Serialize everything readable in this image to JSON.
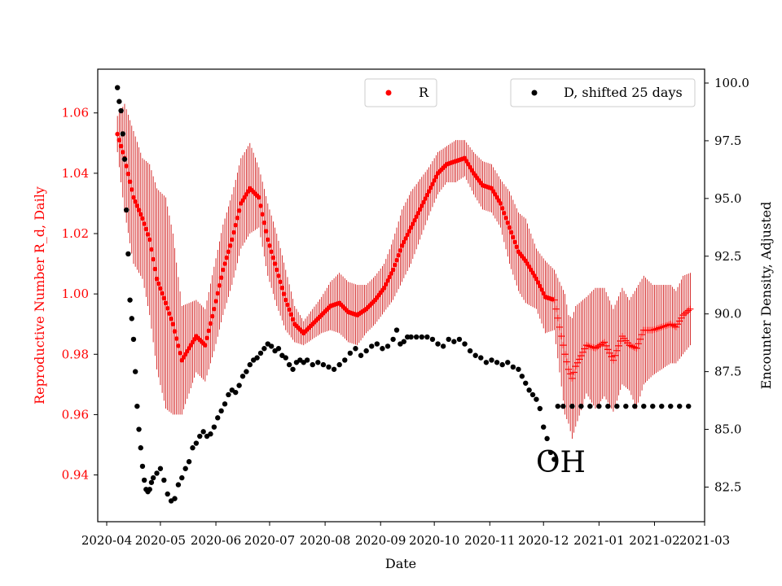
{
  "chart_data": {
    "type": "scatter",
    "title": "",
    "annotation": "OH",
    "xlabel": "Date",
    "ylabel_left": "Reproductive Number R_d, Daily",
    "ylabel_right": "Encounter Density, Adjusted",
    "x_ticks": [
      "2020-04",
      "2020-05",
      "2020-06",
      "2020-07",
      "2020-08",
      "2020-09",
      "2020-10",
      "2020-11",
      "2020-12",
      "2021-01",
      "2021-02",
      "2021-03"
    ],
    "y_left_ticks": [
      "0.94",
      "0.96",
      "0.98",
      "1.00",
      "1.02",
      "1.04",
      "1.06"
    ],
    "y_right_ticks": [
      "82.5",
      "85.0",
      "87.5",
      "90.0",
      "92.5",
      "95.0",
      "97.5",
      "100.0"
    ],
    "x_range_days": [
      -5,
      334
    ],
    "y_left_range": [
      0.9245,
      1.0745
    ],
    "y_right_range": [
      81.0,
      100.6
    ],
    "legend": {
      "r_label": "R",
      "d_label": "D, shifted 25 days"
    },
    "colors": {
      "r_series": "#ff0000",
      "r_errorbar": "#cc0000",
      "d_series": "#000000",
      "left_axis_text": "#ff0000"
    },
    "series": [
      {
        "name": "R",
        "axis": "left",
        "points": [
          [
            6,
            1.053,
            0.006
          ],
          [
            10,
            1.045,
            0.018
          ],
          [
            15,
            1.032,
            0.022
          ],
          [
            20,
            1.025,
            0.02
          ],
          [
            24,
            1.018,
            0.025
          ],
          [
            28,
            1.005,
            0.03
          ],
          [
            33,
            0.997,
            0.035
          ],
          [
            37,
            0.99,
            0.03
          ],
          [
            42,
            0.978,
            0.018
          ],
          [
            46,
            0.982,
            0.015
          ],
          [
            50,
            0.986,
            0.012
          ],
          [
            55,
            0.983,
            0.012
          ],
          [
            60,
            0.995,
            0.014
          ],
          [
            65,
            1.008,
            0.015
          ],
          [
            70,
            1.018,
            0.015
          ],
          [
            75,
            1.03,
            0.015
          ],
          [
            80,
            1.035,
            0.015
          ],
          [
            85,
            1.032,
            0.01
          ],
          [
            90,
            1.018,
            0.012
          ],
          [
            95,
            1.008,
            0.012
          ],
          [
            100,
            0.998,
            0.01
          ],
          [
            105,
            0.99,
            0.006
          ],
          [
            110,
            0.987,
            0.004
          ],
          [
            115,
            0.99,
            0.005
          ],
          [
            120,
            0.993,
            0.006
          ],
          [
            125,
            0.996,
            0.008
          ],
          [
            130,
            0.997,
            0.01
          ],
          [
            135,
            0.994,
            0.01
          ],
          [
            140,
            0.993,
            0.01
          ],
          [
            145,
            0.995,
            0.008
          ],
          [
            150,
            0.998,
            0.008
          ],
          [
            155,
            1.002,
            0.008
          ],
          [
            160,
            1.008,
            0.01
          ],
          [
            165,
            1.016,
            0.012
          ],
          [
            170,
            1.022,
            0.012
          ],
          [
            175,
            1.028,
            0.01
          ],
          [
            180,
            1.034,
            0.008
          ],
          [
            185,
            1.04,
            0.007
          ],
          [
            190,
            1.043,
            0.006
          ],
          [
            195,
            1.044,
            0.007
          ],
          [
            200,
            1.045,
            0.006
          ],
          [
            205,
            1.04,
            0.007
          ],
          [
            210,
            1.036,
            0.008
          ],
          [
            215,
            1.035,
            0.008
          ],
          [
            220,
            1.03,
            0.008
          ],
          [
            225,
            1.022,
            0.012
          ],
          [
            230,
            1.014,
            0.013
          ],
          [
            234,
            1.011,
            0.014
          ],
          [
            240,
            1.005,
            0.01
          ],
          [
            245,
            0.999,
            0.012
          ],
          [
            250,
            0.998,
            0.01
          ],
          [
            256,
            0.98,
            0.02
          ],
          [
            258,
            0.975,
            0.018
          ],
          [
            260,
            0.972,
            0.02
          ],
          [
            262,
            0.976,
            0.02
          ],
          [
            268,
            0.983,
            0.016
          ],
          [
            273,
            0.982,
            0.02
          ],
          [
            278,
            0.984,
            0.018
          ],
          [
            283,
            0.978,
            0.017
          ],
          [
            288,
            0.986,
            0.016
          ],
          [
            292,
            0.983,
            0.015
          ],
          [
            296,
            0.982,
            0.02
          ],
          [
            300,
            0.988,
            0.018
          ],
          [
            305,
            0.988,
            0.015
          ],
          [
            310,
            0.989,
            0.014
          ],
          [
            315,
            0.99,
            0.013
          ],
          [
            318,
            0.989,
            0.012
          ],
          [
            322,
            0.993,
            0.013
          ],
          [
            326,
            0.995,
            0.012
          ]
        ]
      },
      {
        "name": "D, shifted 25 days",
        "axis": "right",
        "points": [
          [
            6,
            99.8
          ],
          [
            7,
            99.2
          ],
          [
            8,
            98.8
          ],
          [
            9,
            97.8
          ],
          [
            10,
            96.7
          ],
          [
            11,
            94.5
          ],
          [
            12,
            92.6
          ],
          [
            13,
            90.6
          ],
          [
            14,
            89.8
          ],
          [
            15,
            88.9
          ],
          [
            16,
            87.5
          ],
          [
            17,
            86.0
          ],
          [
            18,
            85.0
          ],
          [
            19,
            84.2
          ],
          [
            20,
            83.4
          ],
          [
            21,
            82.8
          ],
          [
            22,
            82.4
          ],
          [
            23,
            82.3
          ],
          [
            24,
            82.4
          ],
          [
            25,
            82.7
          ],
          [
            26,
            82.9
          ],
          [
            28,
            83.1
          ],
          [
            30,
            83.3
          ],
          [
            32,
            82.8
          ],
          [
            34,
            82.2
          ],
          [
            36,
            81.9
          ],
          [
            38,
            82.0
          ],
          [
            40,
            82.6
          ],
          [
            42,
            82.9
          ],
          [
            44,
            83.3
          ],
          [
            46,
            83.6
          ],
          [
            48,
            84.2
          ],
          [
            50,
            84.4
          ],
          [
            52,
            84.7
          ],
          [
            54,
            84.9
          ],
          [
            56,
            84.7
          ],
          [
            58,
            84.8
          ],
          [
            60,
            85.1
          ],
          [
            62,
            85.5
          ],
          [
            64,
            85.8
          ],
          [
            66,
            86.1
          ],
          [
            68,
            86.5
          ],
          [
            70,
            86.7
          ],
          [
            72,
            86.6
          ],
          [
            74,
            86.9
          ],
          [
            76,
            87.3
          ],
          [
            78,
            87.5
          ],
          [
            80,
            87.8
          ],
          [
            82,
            88.0
          ],
          [
            84,
            88.1
          ],
          [
            86,
            88.3
          ],
          [
            88,
            88.5
          ],
          [
            90,
            88.7
          ],
          [
            92,
            88.6
          ],
          [
            94,
            88.4
          ],
          [
            96,
            88.5
          ],
          [
            98,
            88.2
          ],
          [
            100,
            88.1
          ],
          [
            102,
            87.8
          ],
          [
            104,
            87.6
          ],
          [
            106,
            87.9
          ],
          [
            108,
            88.0
          ],
          [
            110,
            87.9
          ],
          [
            112,
            88.0
          ],
          [
            115,
            87.8
          ],
          [
            118,
            87.9
          ],
          [
            121,
            87.8
          ],
          [
            124,
            87.7
          ],
          [
            127,
            87.6
          ],
          [
            130,
            87.8
          ],
          [
            133,
            88.0
          ],
          [
            136,
            88.3
          ],
          [
            139,
            88.5
          ],
          [
            142,
            88.2
          ],
          [
            145,
            88.4
          ],
          [
            148,
            88.6
          ],
          [
            151,
            88.7
          ],
          [
            154,
            88.5
          ],
          [
            157,
            88.6
          ],
          [
            160,
            88.9
          ],
          [
            162,
            89.3
          ],
          [
            164,
            88.7
          ],
          [
            166,
            88.8
          ],
          [
            168,
            89.0
          ],
          [
            170,
            89.0
          ],
          [
            173,
            89.0
          ],
          [
            176,
            89.0
          ],
          [
            179,
            89.0
          ],
          [
            182,
            88.9
          ],
          [
            185,
            88.7
          ],
          [
            188,
            88.6
          ],
          [
            191,
            88.9
          ],
          [
            194,
            88.8
          ],
          [
            197,
            88.9
          ],
          [
            200,
            88.7
          ],
          [
            203,
            88.4
          ],
          [
            206,
            88.2
          ],
          [
            209,
            88.1
          ],
          [
            212,
            87.9
          ],
          [
            215,
            88.0
          ],
          [
            218,
            87.9
          ],
          [
            221,
            87.8
          ],
          [
            224,
            87.9
          ],
          [
            227,
            87.7
          ],
          [
            230,
            87.6
          ],
          [
            232,
            87.3
          ],
          [
            234,
            87.0
          ],
          [
            236,
            86.7
          ],
          [
            238,
            86.5
          ],
          [
            240,
            86.3
          ],
          [
            242,
            85.9
          ],
          [
            244,
            85.1
          ],
          [
            246,
            84.6
          ],
          [
            248,
            84.0
          ],
          [
            250,
            83.7
          ],
          [
            252,
            86.0
          ],
          [
            255,
            86.0
          ],
          [
            260,
            86.0
          ],
          [
            265,
            86.0
          ],
          [
            270,
            86.0
          ],
          [
            275,
            86.0
          ],
          [
            280,
            86.0
          ],
          [
            285,
            86.0
          ],
          [
            290,
            86.0
          ],
          [
            295,
            86.0
          ],
          [
            300,
            86.0
          ],
          [
            305,
            86.0
          ],
          [
            310,
            86.0
          ],
          [
            315,
            86.0
          ],
          [
            320,
            86.0
          ],
          [
            325,
            86.0
          ]
        ]
      }
    ]
  }
}
